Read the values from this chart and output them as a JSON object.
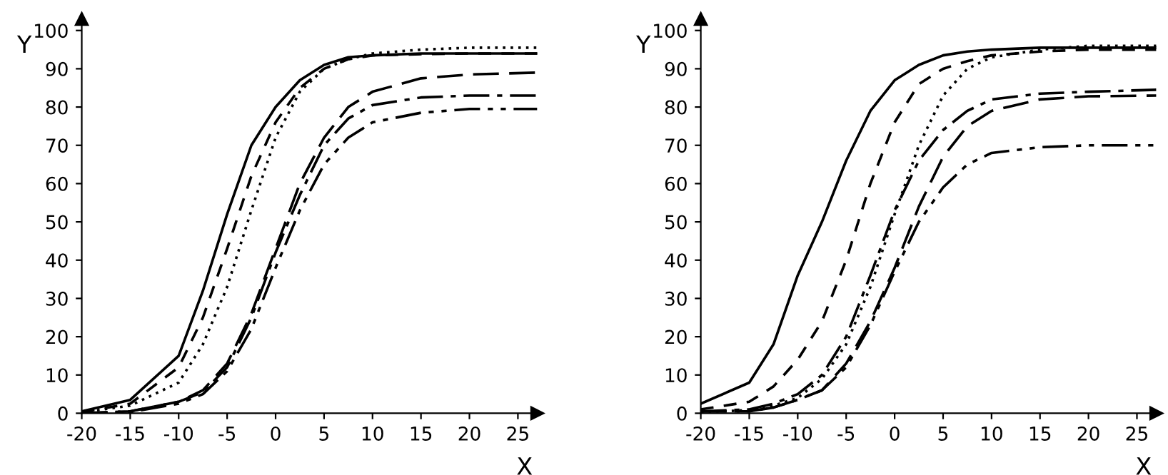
{
  "chart_data": [
    {
      "type": "line",
      "xlabel": "X",
      "ylabel": "Y",
      "xlim": [
        -20,
        27
      ],
      "ylim": [
        0,
        103
      ],
      "xticks": [
        -20,
        -15,
        -10,
        -5,
        0,
        5,
        10,
        15,
        20,
        25
      ],
      "yticks": [
        0,
        10,
        20,
        30,
        40,
        50,
        60,
        70,
        80,
        90,
        100
      ],
      "grid": false,
      "legend": false,
      "marker": "none",
      "x": [
        -20,
        -15,
        -10,
        -7.5,
        -5,
        -2.5,
        0,
        2.5,
        5,
        7.5,
        10,
        15,
        20,
        27
      ],
      "series": [
        {
          "color": "#000000",
          "line_style": "solid",
          "values": [
            0.5,
            3.5,
            15,
            32,
            52,
            70,
            80,
            87,
            91,
            93,
            93.5,
            94,
            94,
            94
          ]
        },
        {
          "color": "#000000",
          "line_style": "dashed",
          "values": [
            0.3,
            2.5,
            12,
            25,
            43,
            62,
            76,
            85,
            90,
            92.5,
            93.5,
            93.8,
            94,
            94
          ]
        },
        {
          "color": "#000000",
          "line_style": "dotted",
          "values": [
            0.2,
            2,
            8,
            18,
            33,
            53,
            72,
            84,
            90,
            92.5,
            94,
            95,
            95.5,
            95.5
          ]
        },
        {
          "color": "#000000",
          "line_style": "longdash",
          "values": [
            0,
            0.5,
            3,
            6,
            13,
            26,
            43,
            60,
            72,
            80,
            84,
            87.5,
            88.5,
            89
          ]
        },
        {
          "color": "#000000",
          "line_style": "dashdot",
          "values": [
            0,
            0.5,
            3,
            5.5,
            12,
            25,
            42,
            57,
            70,
            77,
            80.5,
            82.5,
            83,
            83
          ]
        },
        {
          "color": "#000000",
          "line_style": "dashdotdot",
          "values": [
            0,
            0.3,
            2.5,
            5,
            11,
            22,
            38,
            53,
            65,
            72,
            76,
            78.5,
            79.5,
            79.5
          ]
        }
      ]
    },
    {
      "type": "line",
      "xlabel": "X",
      "ylabel": "Y",
      "xlim": [
        -20,
        27
      ],
      "ylim": [
        0,
        103
      ],
      "xticks": [
        -20,
        -15,
        -10,
        -5,
        0,
        5,
        10,
        15,
        20,
        25
      ],
      "yticks": [
        0,
        10,
        20,
        30,
        40,
        50,
        60,
        70,
        80,
        90,
        100
      ],
      "grid": false,
      "legend": false,
      "marker": "none",
      "x": [
        -20,
        -15,
        -12.5,
        -10,
        -7.5,
        -5,
        -2.5,
        0,
        2.5,
        5,
        7.5,
        10,
        15,
        20,
        27
      ],
      "series": [
        {
          "color": "#000000",
          "line_style": "solid",
          "values": [
            2.5,
            8,
            18,
            36,
            50,
            66,
            79,
            87,
            91,
            93.5,
            94.5,
            95,
            95.5,
            95.5,
            95.5
          ]
        },
        {
          "color": "#000000",
          "line_style": "dashed",
          "values": [
            1,
            3,
            7,
            14,
            24,
            40,
            60,
            76,
            86,
            90,
            92,
            93.5,
            94.5,
            95,
            95
          ]
        },
        {
          "color": "#000000",
          "line_style": "dotted",
          "values": [
            0.3,
            0.8,
            2,
            4,
            9,
            18,
            33,
            52,
            70,
            83,
            90,
            93,
            95,
            96,
            96
          ]
        },
        {
          "color": "#000000",
          "line_style": "dashdot",
          "values": [
            0.5,
            1,
            2.5,
            5,
            10,
            20,
            36,
            53,
            66,
            74,
            79,
            82,
            83.5,
            84,
            84.5
          ]
        },
        {
          "color": "#000000",
          "line_style": "longdash",
          "values": [
            0.5,
            0.5,
            1.5,
            3.5,
            6,
            13,
            24,
            38,
            54,
            67,
            75,
            79,
            82,
            82.8,
            83
          ]
        },
        {
          "color": "#000000",
          "line_style": "dashdotdot",
          "values": [
            0.5,
            0.5,
            1.5,
            3.5,
            6,
            12,
            23,
            37,
            50,
            59,
            65,
            68,
            69.5,
            70,
            70
          ]
        }
      ]
    }
  ]
}
